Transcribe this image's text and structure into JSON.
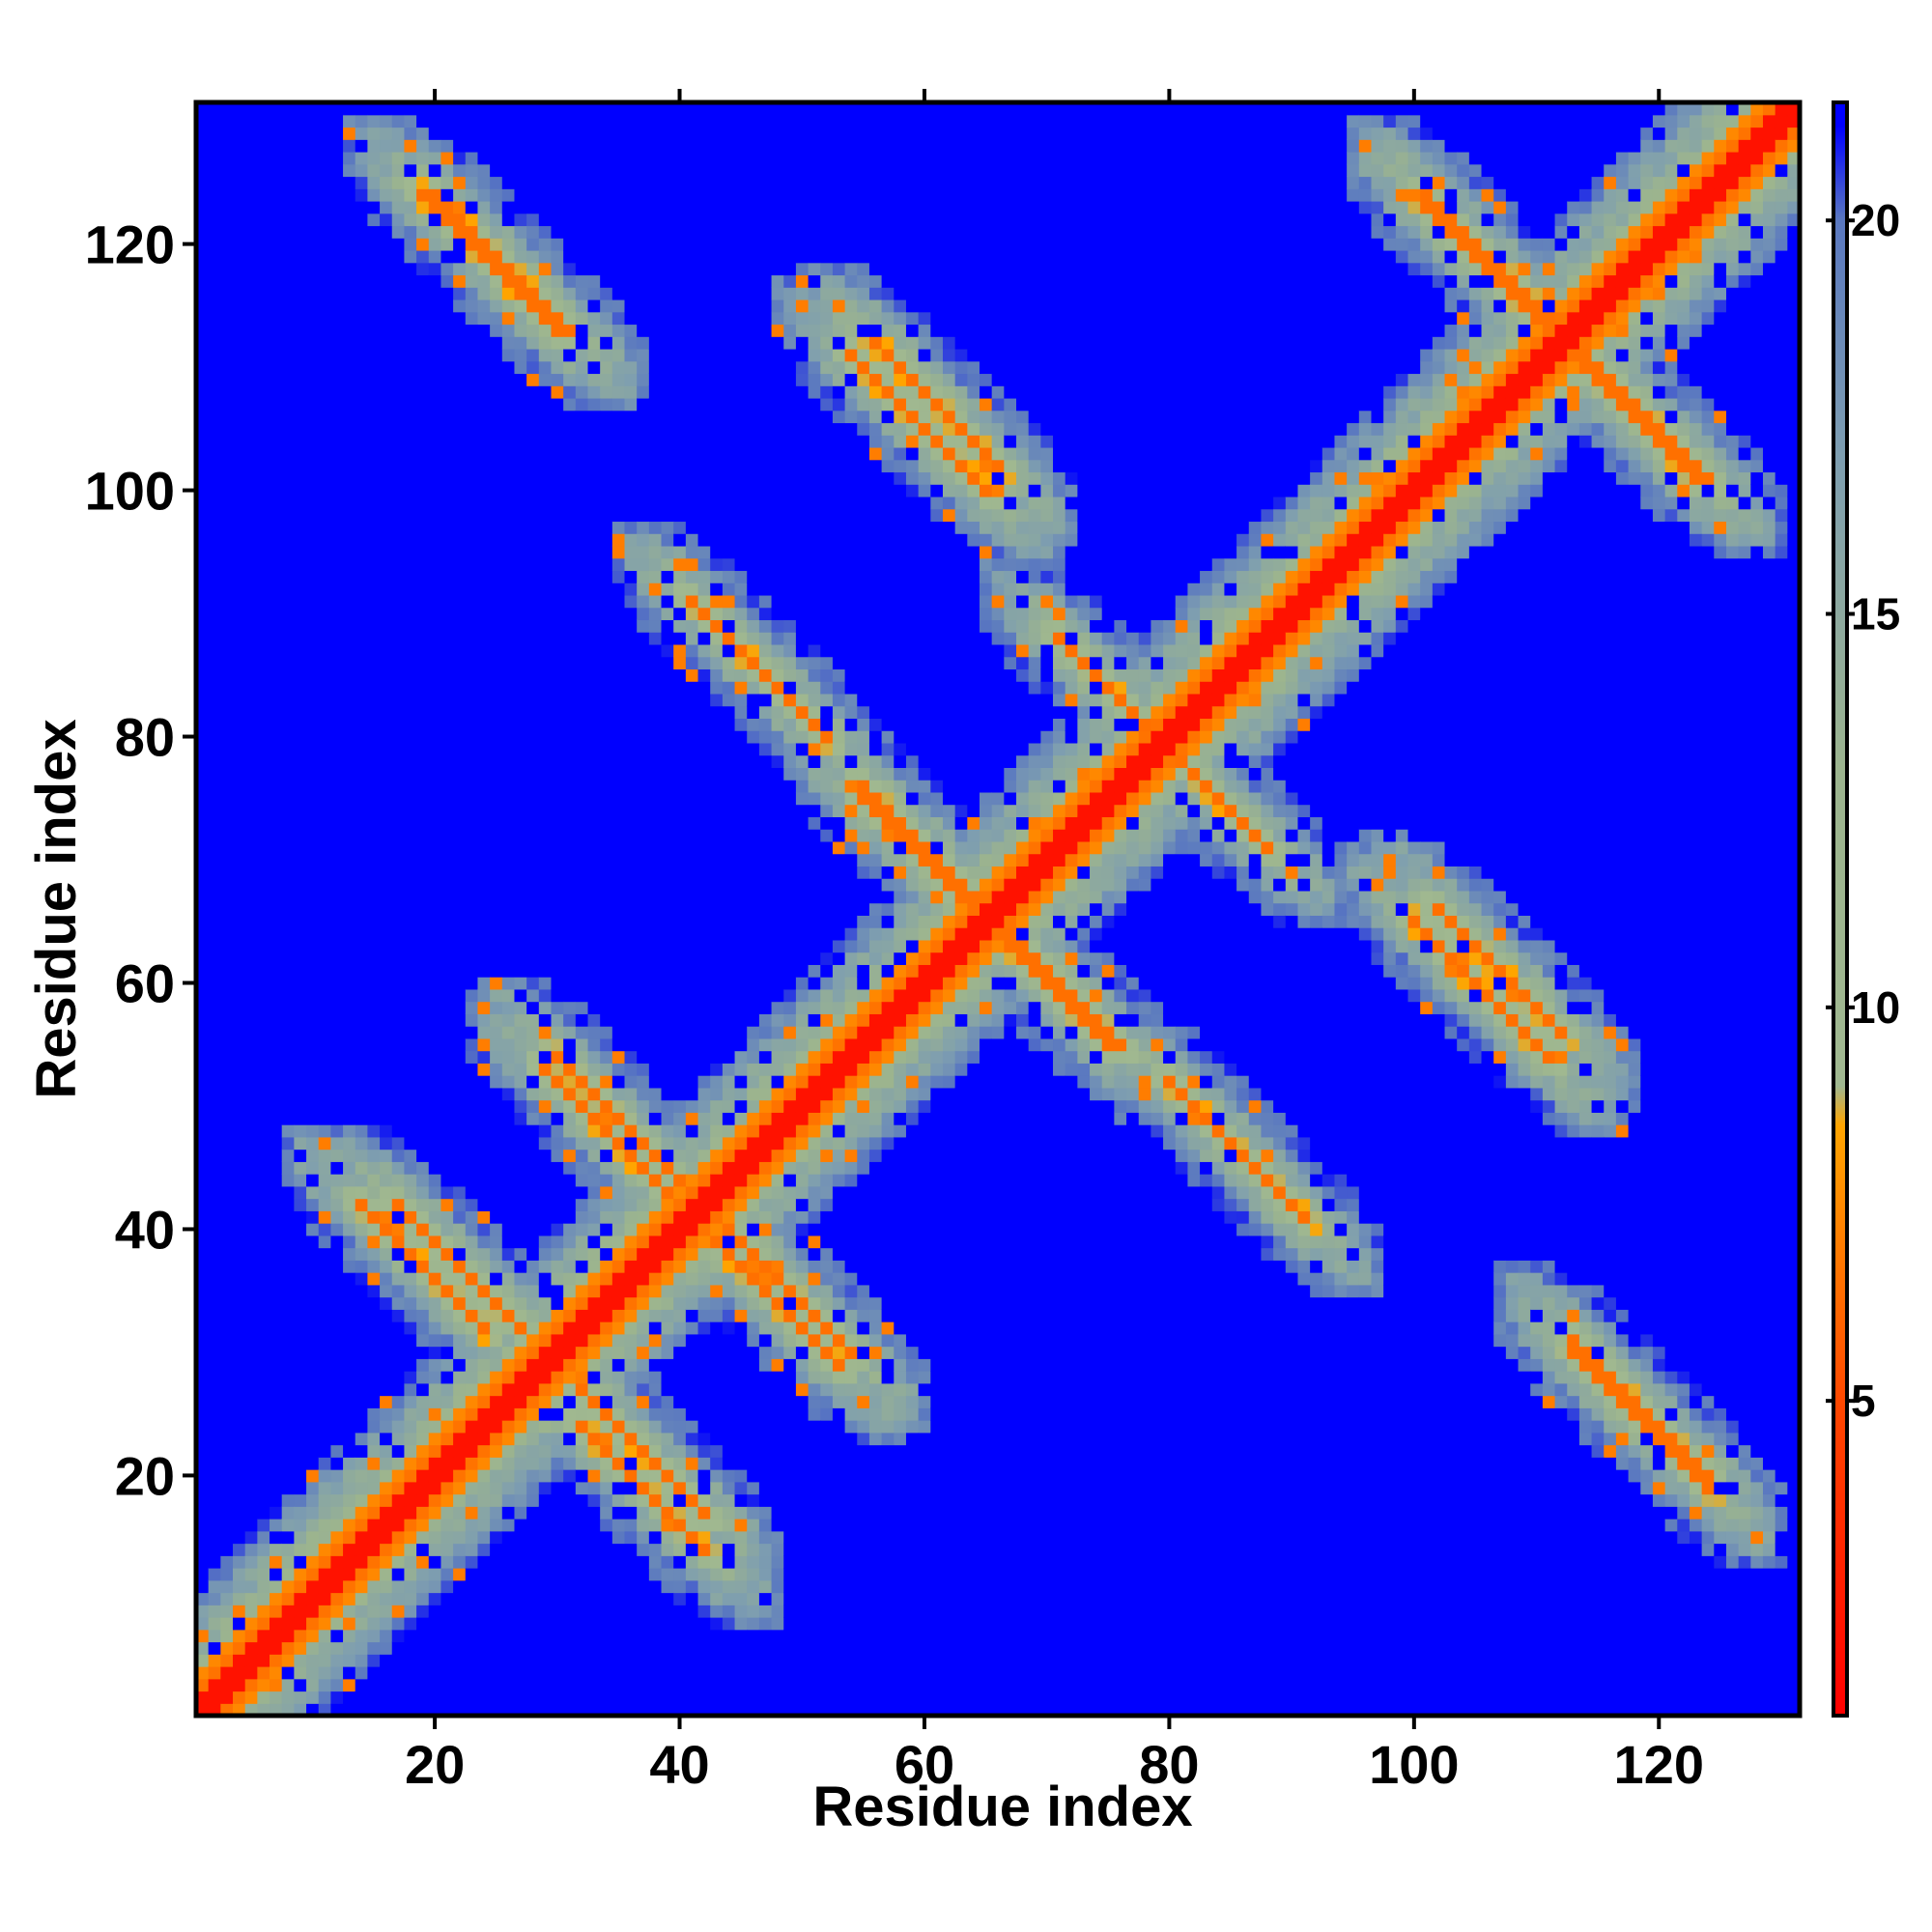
{
  "chart_data": {
    "type": "heatmap",
    "title": "",
    "xlabel": "Residue index",
    "ylabel": "Residue index",
    "xlim": [
      1,
      131
    ],
    "ylim": [
      1,
      131
    ],
    "n_residues": 131,
    "x_ticks": [
      20,
      40,
      60,
      80,
      100,
      120
    ],
    "y_ticks": [
      20,
      40,
      60,
      80,
      100,
      120
    ],
    "colorbar": {
      "range": [
        1,
        21.5
      ],
      "ticks": [
        5,
        10,
        15,
        20
      ],
      "stops": [
        {
          "value": 1,
          "color": "#ff0000"
        },
        {
          "value": 5,
          "color": "#ff4800"
        },
        {
          "value": 8.5,
          "color": "#ffa500"
        },
        {
          "value": 9,
          "color": "#a0b890"
        },
        {
          "value": 13,
          "color": "#9cb48e"
        },
        {
          "value": 17,
          "color": "#7e9eb0"
        },
        {
          "value": 20,
          "color": "#5a78c0"
        },
        {
          "value": 21.2,
          "color": "#0000ff"
        }
      ]
    },
    "background_color": "#0000ff",
    "description_contacts": {
      "antiparallel_pairs": [
        {
          "i_start": 20,
          "j_start": 123,
          "length": 10
        },
        {
          "i_start": 18,
          "j_start": 41,
          "length": 9
        },
        {
          "i_start": 33,
          "j_start": 23,
          "length": 9
        },
        {
          "i_start": 31,
          "j_start": 53,
          "length": 11
        },
        {
          "i_start": 44,
          "j_start": 38,
          "length": 9
        },
        {
          "i_start": 42,
          "j_start": 90,
          "length": 10
        },
        {
          "i_start": 55,
          "j_start": 110,
          "length": 10
        },
        {
          "i_start": 56,
          "j_start": 75,
          "length": 9
        },
        {
          "i_start": 66,
          "j_start": 64,
          "length": 9
        },
        {
          "i_start": 72,
          "j_start": 87,
          "length": 8
        },
        {
          "i_start": 102,
          "j_start": 123,
          "length": 9
        },
        {
          "i_start": 103,
          "j_start": 65,
          "length": 9
        },
        {
          "i_start": 114,
          "j_start": 110,
          "length": 9
        },
        {
          "i_start": 114,
          "j_start": 30,
          "length": 10
        }
      ]
    }
  }
}
